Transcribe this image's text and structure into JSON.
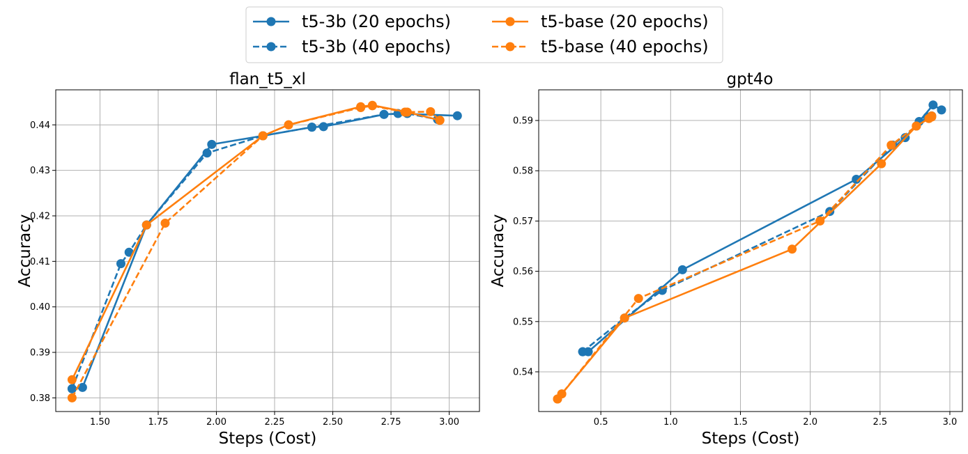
{
  "legend": {
    "entries": [
      {
        "label": "t5-3b (20 epochs)",
        "color": "#1f77b4",
        "dash": "solid"
      },
      {
        "label": "t5-3b (40 epochs)",
        "color": "#1f77b4",
        "dash": "dashed"
      },
      {
        "label": "t5-base (20 epochs)",
        "color": "#ff7f0e",
        "dash": "solid"
      },
      {
        "label": "t5-base (40 epochs)",
        "color": "#ff7f0e",
        "dash": "dashed"
      }
    ],
    "placement": "top-center"
  },
  "chart_data": [
    {
      "type": "line",
      "title": "flan_t5_xl",
      "xlabel": "Steps (Cost)",
      "ylabel": "Accuracy",
      "xlim": [
        1.31,
        3.13
      ],
      "ylim": [
        0.377,
        0.4477
      ],
      "xticks": [
        1.5,
        1.75,
        2.0,
        2.25,
        2.5,
        2.75,
        3.0
      ],
      "xtick_labels": [
        "1.50",
        "1.75",
        "2.00",
        "2.25",
        "2.50",
        "2.75",
        "3.00"
      ],
      "yticks": [
        0.38,
        0.39,
        0.4,
        0.41,
        0.42,
        0.43,
        0.44
      ],
      "ytick_labels": [
        "0.38",
        "0.39",
        "0.40",
        "0.41",
        "0.42",
        "0.43",
        "0.44"
      ],
      "grid": true,
      "series": [
        {
          "name": "t5-3b (20 epochs)",
          "color": "#1f77b4",
          "dash": "solid",
          "points": [
            [
              1.38,
              0.382
            ],
            [
              1.425,
              0.3823
            ],
            [
              1.7,
              0.418
            ],
            [
              1.98,
              0.4357
            ],
            [
              2.2,
              0.4376
            ],
            [
              2.41,
              0.4395
            ],
            [
              2.46,
              0.4396
            ],
            [
              2.72,
              0.4423
            ],
            [
              2.78,
              0.4425
            ],
            [
              3.035,
              0.442
            ]
          ]
        },
        {
          "name": "t5-3b (40 epochs)",
          "color": "#1f77b4",
          "dash": "dashed",
          "points": [
            [
              1.38,
              0.382
            ],
            [
              1.59,
              0.4095
            ],
            [
              1.625,
              0.412
            ],
            [
              1.7,
              0.418
            ],
            [
              1.96,
              0.4338
            ],
            [
              2.2,
              0.4376
            ],
            [
              2.41,
              0.4395
            ],
            [
              2.72,
              0.4423
            ],
            [
              2.82,
              0.4425
            ],
            [
              2.95,
              0.4412
            ]
          ]
        },
        {
          "name": "t5-base (20 epochs)",
          "color": "#ff7f0e",
          "dash": "solid",
          "points": [
            [
              1.38,
              0.384
            ],
            [
              1.7,
              0.418
            ],
            [
              2.2,
              0.4376
            ],
            [
              2.31,
              0.44
            ],
            [
              2.62,
              0.444
            ],
            [
              2.67,
              0.4443
            ],
            [
              2.82,
              0.4428
            ],
            [
              2.96,
              0.441
            ]
          ]
        },
        {
          "name": "t5-base (40 epochs)",
          "color": "#ff7f0e",
          "dash": "dashed",
          "points": [
            [
              1.38,
              0.38
            ],
            [
              1.78,
              0.4184
            ],
            [
              2.2,
              0.4376
            ],
            [
              2.31,
              0.44
            ],
            [
              2.62,
              0.4438
            ],
            [
              2.67,
              0.4442
            ],
            [
              2.81,
              0.4428
            ],
            [
              2.92,
              0.4429
            ],
            [
              2.96,
              0.441
            ]
          ]
        }
      ]
    },
    {
      "type": "line",
      "title": "gpt4o",
      "xlabel": "Steps (Cost)",
      "ylabel": "Accuracy",
      "xlim": [
        0.055,
        3.09
      ],
      "ylim": [
        0.5321,
        0.5961
      ],
      "xticks": [
        0.5,
        1.0,
        1.5,
        2.0,
        2.5,
        3.0
      ],
      "xtick_labels": [
        "0.5",
        "1.0",
        "1.5",
        "2.0",
        "2.5",
        "3.0"
      ],
      "yticks": [
        0.54,
        0.55,
        0.56,
        0.57,
        0.58,
        0.59
      ],
      "ytick_labels": [
        "0.54",
        "0.55",
        "0.56",
        "0.57",
        "0.58",
        "0.59"
      ],
      "grid": true,
      "series": [
        {
          "name": "t5-3b (20 epochs)",
          "color": "#1f77b4",
          "dash": "solid",
          "points": [
            [
              0.37,
              0.544
            ],
            [
              0.41,
              0.544
            ],
            [
              1.085,
              0.5603
            ],
            [
              2.33,
              0.5783
            ],
            [
              2.68,
              0.5866
            ],
            [
              2.78,
              0.5898
            ],
            [
              2.88,
              0.5931
            ],
            [
              2.94,
              0.5921
            ]
          ]
        },
        {
          "name": "t5-3b (40 epochs)",
          "color": "#1f77b4",
          "dash": "dashed",
          "points": [
            [
              0.37,
              0.544
            ],
            [
              0.67,
              0.5507
            ],
            [
              0.94,
              0.5562
            ],
            [
              2.14,
              0.5719
            ],
            [
              2.59,
              0.5851
            ],
            [
              2.76,
              0.5889
            ],
            [
              2.84,
              0.5907
            ],
            [
              2.87,
              0.5909
            ]
          ]
        },
        {
          "name": "t5-base (20 epochs)",
          "color": "#ff7f0e",
          "dash": "solid",
          "points": [
            [
              0.19,
              0.5346
            ],
            [
              0.22,
              0.5356
            ],
            [
              0.67,
              0.5507
            ],
            [
              1.87,
              0.5644
            ],
            [
              2.51,
              0.5814
            ],
            [
              2.76,
              0.5889
            ],
            [
              2.85,
              0.5904
            ],
            [
              2.87,
              0.5909
            ]
          ]
        },
        {
          "name": "t5-base (40 epochs)",
          "color": "#ff7f0e",
          "dash": "dashed",
          "points": [
            [
              0.19,
              0.5346
            ],
            [
              0.22,
              0.5356
            ],
            [
              0.77,
              0.5546
            ],
            [
              2.07,
              0.57
            ],
            [
              2.58,
              0.5851
            ],
            [
              2.76,
              0.5889
            ],
            [
              2.85,
              0.5904
            ],
            [
              2.87,
              0.5907
            ]
          ]
        }
      ]
    }
  ]
}
